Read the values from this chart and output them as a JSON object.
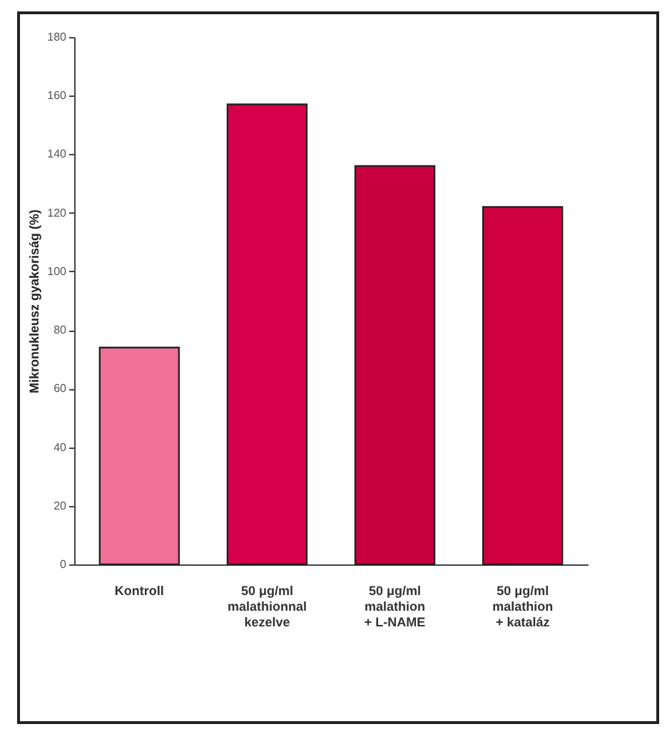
{
  "chart_data": {
    "type": "bar",
    "ylabel": "Mikronukleusz gyakoriság (%)",
    "categories": [
      "Kontroll",
      "50 μg/ml\nmalathionnal\nkezelve",
      "50 μg/ml\nmalathion\n+ L-NAME",
      "50 μg/ml\nmalathion\n+ kataláz"
    ],
    "values": [
      74,
      157,
      136,
      122
    ],
    "colors": [
      "#f0709a",
      "#d8004a",
      "#c8003f",
      "#d0003f"
    ],
    "ylim": [
      0,
      180
    ],
    "yticks": [
      0,
      20,
      40,
      60,
      80,
      100,
      120,
      140,
      160,
      180
    ],
    "grid": false
  }
}
